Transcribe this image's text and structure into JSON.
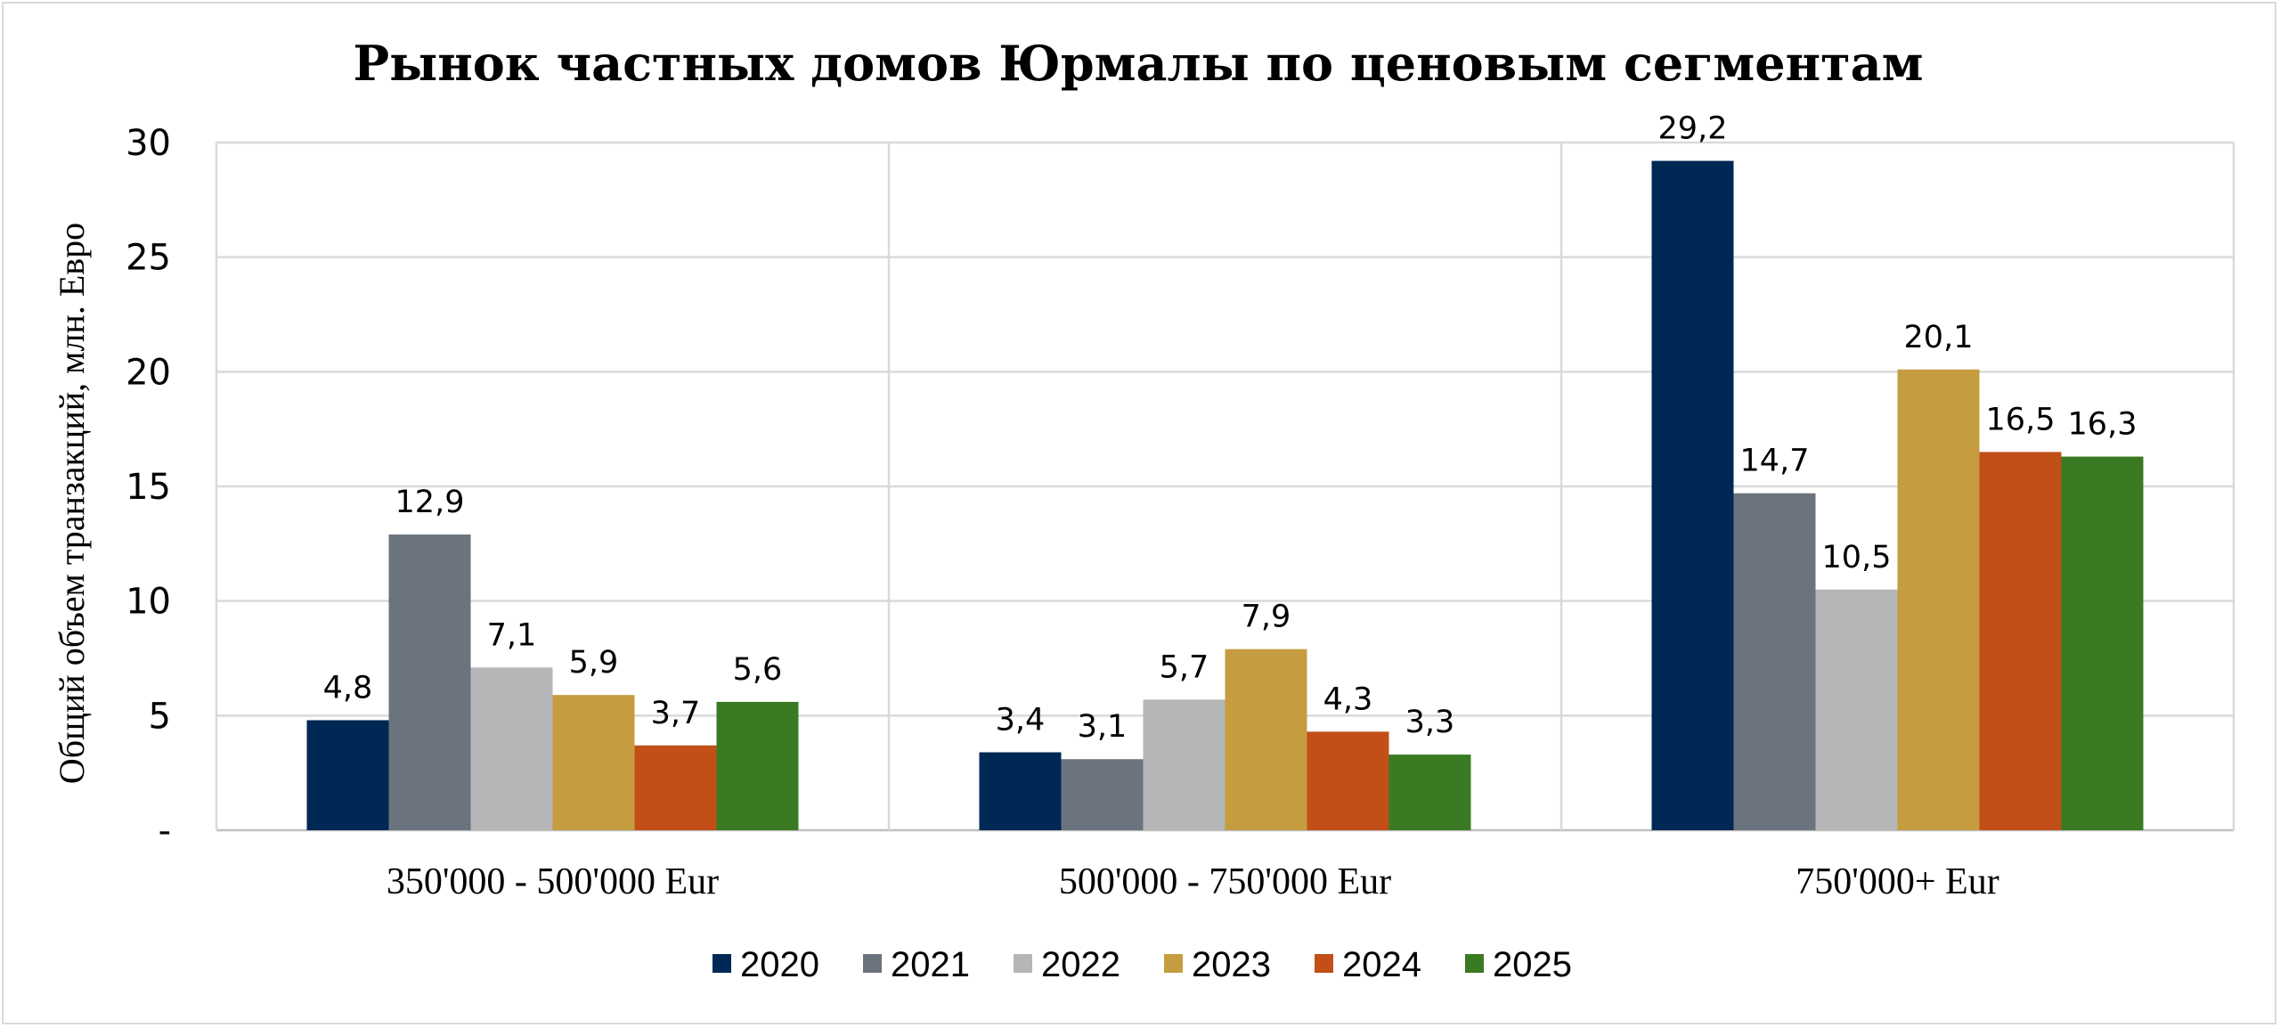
{
  "chart_data": {
    "type": "bar",
    "title": "Рынок частных домов Юрмалы по ценовым сегментам",
    "ylabel": "Общий объем транзакций, млн. Евро",
    "xlabel": "",
    "ylim": [
      0,
      30
    ],
    "yticks": [
      "-",
      "5",
      "10",
      "15",
      "20",
      "25",
      "30"
    ],
    "categories": [
      "350'000 - 500'000 Eur",
      "500'000 - 750'000 Eur",
      "750'000+ Eur"
    ],
    "series": [
      {
        "name": "2020",
        "color": "#002855",
        "values": [
          4.8,
          3.4,
          29.2
        ],
        "labels": [
          "4,8",
          "3,4",
          "29,2"
        ]
      },
      {
        "name": "2021",
        "color": "#6b747e",
        "values": [
          12.9,
          3.1,
          14.7
        ],
        "labels": [
          "12,9",
          "3,1",
          "14,7"
        ]
      },
      {
        "name": "2022",
        "color": "#b5b6b8",
        "values": [
          7.1,
          5.7,
          10.5
        ],
        "labels": [
          "7,1",
          "5,7",
          "10,5"
        ]
      },
      {
        "name": "2023",
        "color": "#c59d40",
        "values": [
          5.9,
          7.9,
          20.1
        ],
        "labels": [
          "5,9",
          "7,9",
          "20,1"
        ]
      },
      {
        "name": "2024",
        "color": "#c14f17",
        "values": [
          3.7,
          4.3,
          16.5
        ],
        "labels": [
          "3,7",
          "4,3",
          "16,5"
        ]
      },
      {
        "name": "2025",
        "color": "#397a22",
        "values": [
          5.6,
          3.3,
          16.3
        ],
        "labels": [
          "5,6",
          "3,3",
          "16,3"
        ]
      }
    ],
    "grid": true,
    "legend_position": "bottom"
  }
}
